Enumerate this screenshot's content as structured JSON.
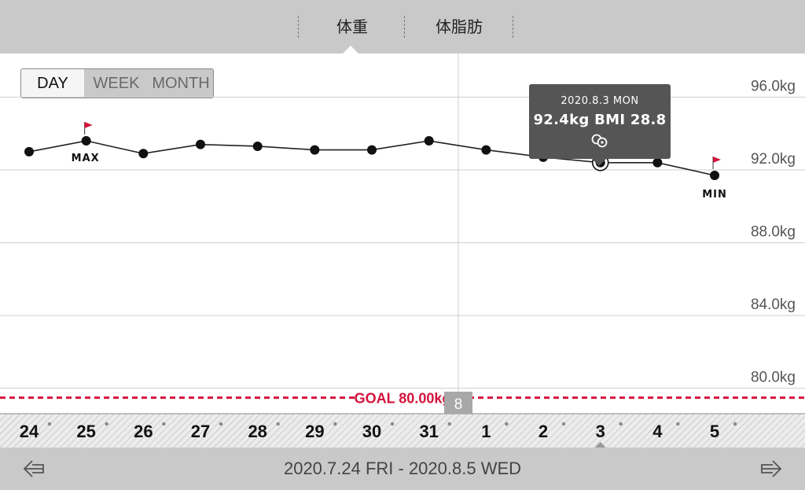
{
  "tabs": [
    {
      "label": "体重",
      "active": true
    },
    {
      "label": "体脂肪",
      "active": false
    }
  ],
  "period": {
    "options": [
      "DAY",
      "WEEK",
      "MONTH"
    ],
    "selected": "DAY"
  },
  "tooltip": {
    "date": "2020.8.3 MON",
    "values": "92.4kg  BMI 28.8"
  },
  "range_label": "2020.7.24 FRI - 2020.8.5 WED",
  "colors": {
    "accent": "#d3143c",
    "bar": "#c9c9c9",
    "tooltip": "#555555"
  },
  "chart_data": {
    "type": "line",
    "x": [
      "24",
      "25",
      "26",
      "27",
      "28",
      "29",
      "30",
      "31",
      "1",
      "2",
      "3",
      "4",
      "5"
    ],
    "values": [
      93.0,
      93.6,
      92.9,
      93.4,
      93.3,
      93.1,
      93.1,
      93.6,
      93.1,
      92.7,
      92.4,
      92.4,
      91.7
    ],
    "ylim": [
      78.6,
      98.4
    ],
    "yticks": [
      96.0,
      92.0,
      88.0,
      84.0,
      80.0
    ],
    "ytick_labels": [
      "96.0kg",
      "92.0kg",
      "88.0kg",
      "84.0kg",
      "80.0kg"
    ],
    "goal": {
      "value": 80.0,
      "label": "GOAL 80.00kg"
    },
    "max_label": "MAX",
    "min_label": "MIN",
    "month_marker": {
      "before_index": 8,
      "label": "8"
    },
    "selected_index": 10,
    "grid": true
  }
}
